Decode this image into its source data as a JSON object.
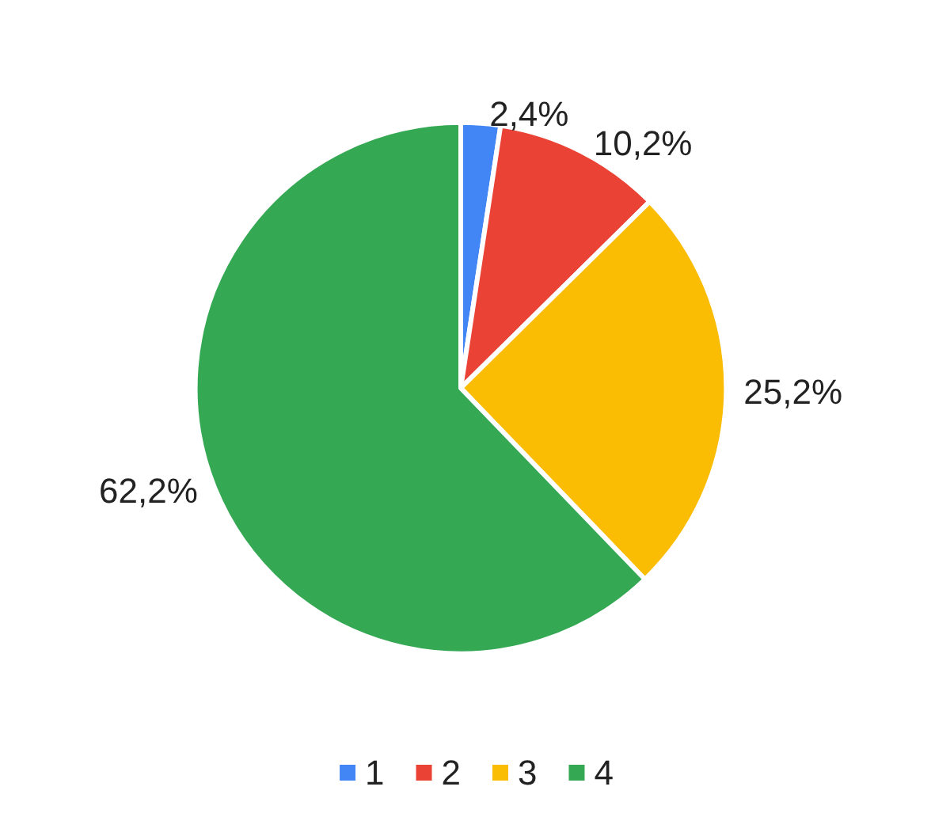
{
  "chart_data": {
    "type": "pie",
    "categories": [
      "1",
      "2",
      "3",
      "4"
    ],
    "values": [
      2.4,
      10.2,
      25.2,
      62.2
    ],
    "colors": [
      "#4285f4",
      "#ea4335",
      "#fbbc04",
      "#34a853"
    ],
    "value_labels": [
      "2,4%",
      "10,2%",
      "25,2%",
      "62,2%"
    ],
    "legend": "bottom"
  }
}
